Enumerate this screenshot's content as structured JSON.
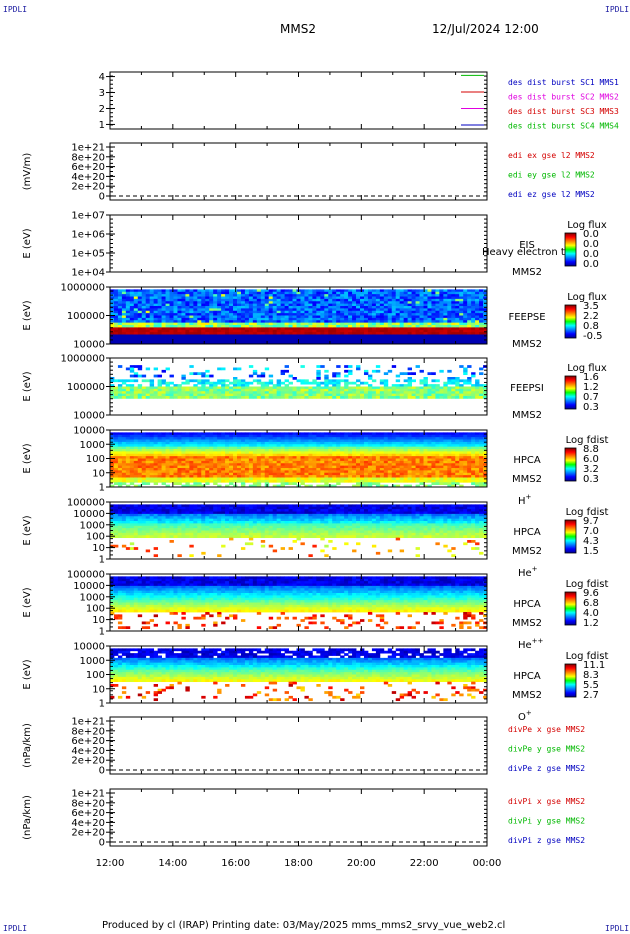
{
  "corners": {
    "tl": "IPDLI",
    "tr": "IPDLI",
    "bl": "IPDLI",
    "br": "IPDLI"
  },
  "header": {
    "spacecraft": "MMS2",
    "datetime": "12/Jul/2024 12:00"
  },
  "footer": {
    "text": "Produced by cl (IRAP)    Printing date: 03/May/2025    mms_mms2_srvy_vue_web2.cl"
  },
  "colors": {
    "red": "#d40000",
    "green": "#00b800",
    "magenta": "#e000e0",
    "blue": "#0000c0"
  },
  "chart_data": {
    "type": "multi-panel time series",
    "x_ticks": [
      "12:00",
      "14:00",
      "16:00",
      "18:00",
      "20:00",
      "22:00",
      "00:00"
    ],
    "panels": [
      {
        "id": "burst",
        "type": "line",
        "ylabel": "",
        "y_ticks": [
          "4",
          "3",
          "2",
          "1"
        ],
        "legend": [
          {
            "text": "des dist burst SC1 MMS1",
            "color": "#0000c0"
          },
          {
            "text": "des dist burst SC2 MMS2",
            "color": "#e000e0"
          },
          {
            "text": "des dist burst SC3 MMS3",
            "color": "#d40000"
          },
          {
            "text": "des dist burst SC4 MMS4",
            "color": "#00b800"
          }
        ],
        "marker_colors": [
          "#00b800",
          "#d40000",
          "#e000e0",
          "#0000c0"
        ]
      },
      {
        "id": "edi",
        "type": "line",
        "ylabel": "(mV/m)",
        "y_ticks": [
          "1e+21",
          "8e+20",
          "6e+20",
          "4e+20",
          "2e+20",
          "0"
        ],
        "legend": [
          {
            "text": "edi ex gse l2 MMS2",
            "color": "#d40000"
          },
          {
            "text": "edi ey gse l2 MMS2",
            "color": "#00b800"
          },
          {
            "text": "edi ez gse l2 MMS2",
            "color": "#0000c0"
          }
        ]
      },
      {
        "id": "eis",
        "type": "heatmap",
        "ylabel": "E (eV)",
        "y_ticks": [
          "1e+07",
          "1e+06",
          "1e+05",
          "1e+04"
        ],
        "inst": "EIS",
        "extra": "Heavy electron to",
        "sc": "MMS2",
        "species": "",
        "cbar_title": "Log flux",
        "cbar_vals": [
          "0.0",
          "0.0",
          "0.0",
          "0.0"
        ]
      },
      {
        "id": "feepse",
        "type": "heatmap",
        "ylabel": "E (eV)",
        "y_ticks": [
          "1000000",
          "100000",
          "10000"
        ],
        "inst": "FEEPSE",
        "sc": "MMS2",
        "species": "",
        "cbar_title": "Log flux",
        "cbar_vals": [
          "3.5",
          "2.2",
          "0.8",
          "-0.5"
        ]
      },
      {
        "id": "feepsi",
        "type": "heatmap",
        "ylabel": "E (eV)",
        "y_ticks": [
          "1000000",
          "100000",
          "10000"
        ],
        "inst": "FEEPSI",
        "sc": "MMS2",
        "species": "",
        "cbar_title": "Log flux",
        "cbar_vals": [
          "1.6",
          "1.2",
          "0.7",
          "0.3"
        ]
      },
      {
        "id": "hpca_h",
        "type": "heatmap",
        "ylabel": "E (eV)",
        "y_ticks": [
          "10000",
          "1000",
          "100",
          "10",
          "1"
        ],
        "inst": "HPCA",
        "sc": "MMS2",
        "species": "H",
        "species_sup": "+",
        "cbar_title": "Log fdist",
        "cbar_vals": [
          "8.8",
          "6.0",
          "3.2",
          "0.3"
        ]
      },
      {
        "id": "hpca_he",
        "type": "heatmap",
        "ylabel": "E (eV)",
        "y_ticks": [
          "100000",
          "10000",
          "1000",
          "100",
          "10",
          "1"
        ],
        "inst": "HPCA",
        "sc": "MMS2",
        "species": "He",
        "species_sup": "+",
        "cbar_title": "Log fdist",
        "cbar_vals": [
          "9.7",
          "7.0",
          "4.3",
          "1.5"
        ]
      },
      {
        "id": "hpca_he2",
        "type": "heatmap",
        "ylabel": "E (eV)",
        "y_ticks": [
          "100000",
          "10000",
          "1000",
          "100",
          "10",
          "1"
        ],
        "inst": "HPCA",
        "sc": "MMS2",
        "species": "He",
        "species_sup": "++",
        "cbar_title": "Log fdist",
        "cbar_vals": [
          "9.6",
          "6.8",
          "4.0",
          "1.2"
        ]
      },
      {
        "id": "hpca_o",
        "type": "heatmap",
        "ylabel": "E (eV)",
        "y_ticks": [
          "10000",
          "1000",
          "100",
          "10",
          "1"
        ],
        "inst": "HPCA",
        "sc": "MMS2",
        "species": "O",
        "species_sup": "+",
        "cbar_title": "Log fdist",
        "cbar_vals": [
          "11.1",
          "8.3",
          "5.5",
          "2.7"
        ]
      },
      {
        "id": "divpe",
        "type": "line",
        "ylabel": "(nPa/km)",
        "y_ticks": [
          "1e+21",
          "8e+20",
          "6e+20",
          "4e+20",
          "2e+20",
          "0"
        ],
        "legend": [
          {
            "text": "divPe x gse MMS2",
            "color": "#d40000"
          },
          {
            "text": "divPe y gse MMS2",
            "color": "#00b800"
          },
          {
            "text": "divPe z gse MMS2",
            "color": "#0000c0"
          }
        ]
      },
      {
        "id": "divpi",
        "type": "line",
        "ylabel": "(nPa/km)",
        "y_ticks": [
          "1e+21",
          "8e+20",
          "6e+20",
          "4e+20",
          "2e+20",
          "0"
        ],
        "legend": [
          {
            "text": "divPi x gse MMS2",
            "color": "#d40000"
          },
          {
            "text": "divPi y gse MMS2",
            "color": "#00b800"
          },
          {
            "text": "divPi z gse MMS2",
            "color": "#0000c0"
          }
        ]
      }
    ]
  }
}
